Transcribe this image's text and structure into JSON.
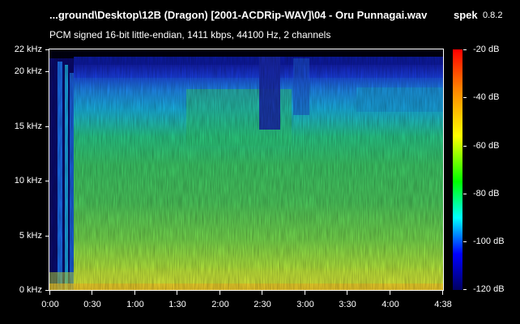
{
  "header": {
    "file_title": "...ground\\Desktop\\12B (Dragon) [2001-ACDRip-WAV]\\04 - Oru Punnagai.wav",
    "app_name": "spek",
    "app_version": "0.8.2",
    "audio_info": "PCM signed 16-bit little-endian, 1411 kbps, 44100 Hz, 2 channels"
  },
  "frequency_axis": {
    "ticks": [
      "22 kHz",
      "20 kHz",
      "15 kHz",
      "10 kHz",
      "5 kHz",
      "0 kHz"
    ]
  },
  "time_axis": {
    "ticks": [
      "0:00",
      "0:30",
      "1:00",
      "1:30",
      "2:00",
      "2:30",
      "3:00",
      "3:30",
      "4:00",
      "4:38"
    ]
  },
  "db_scale": {
    "ticks": [
      "-20 dB",
      "-40 dB",
      "-60 dB",
      "-80 dB",
      "-100 dB",
      "-120 dB"
    ],
    "colors": [
      "#ff0000",
      "#ff8000",
      "#ffff00",
      "#00ff00",
      "#00ffff",
      "#0000ff",
      "#000060"
    ]
  }
}
